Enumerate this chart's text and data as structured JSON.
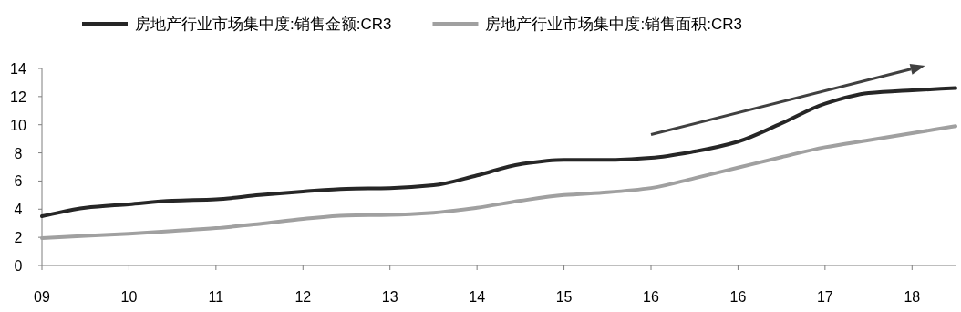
{
  "chart_data": {
    "type": "line",
    "legend": "top",
    "categories": [
      "09",
      null,
      "10",
      null,
      "11",
      null,
      "12",
      null,
      "13",
      null,
      "14",
      null,
      "15",
      null,
      "16",
      null,
      "16",
      null,
      "17",
      null,
      "18",
      null
    ],
    "ylim": [
      0,
      14
    ],
    "yticks": [
      0,
      2,
      4,
      6,
      8,
      10,
      12,
      14
    ],
    "series": [
      {
        "name": "房地产行业市场集中度:销售金额:CR3",
        "color": "#262626",
        "values": [
          3.5,
          4.1,
          4.35,
          4.6,
          4.7,
          5.0,
          5.25,
          5.45,
          5.5,
          5.7,
          6.4,
          7.2,
          7.5,
          7.5,
          7.65,
          8.1,
          8.8,
          10.1,
          11.5,
          12.25,
          12.45,
          12.6
        ]
      },
      {
        "name": "房地产行业市场集中度:销售面积:CR3",
        "color": "#a0a0a0",
        "values": [
          1.95,
          2.1,
          2.25,
          2.45,
          2.65,
          2.95,
          3.3,
          3.55,
          3.6,
          3.75,
          4.1,
          4.6,
          5.0,
          5.2,
          5.5,
          6.2,
          6.95,
          7.7,
          8.4,
          8.9,
          9.4,
          9.9
        ]
      }
    ]
  }
}
